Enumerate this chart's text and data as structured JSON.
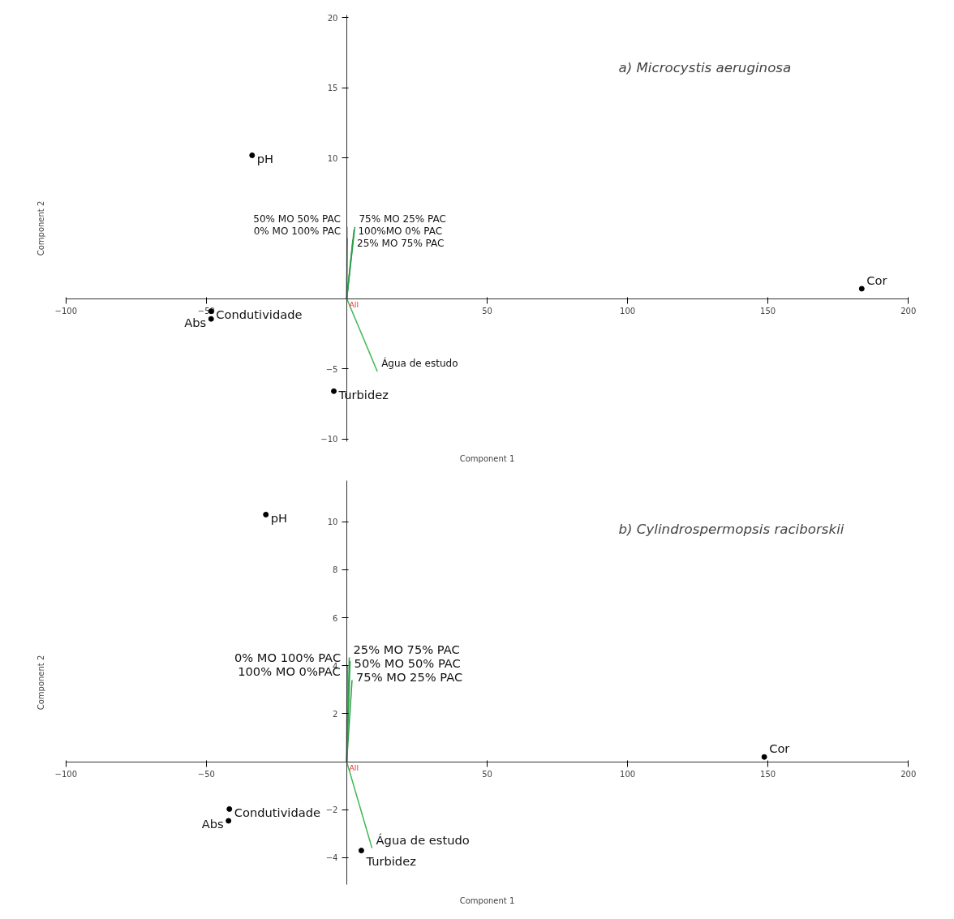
{
  "chart_data": [
    {
      "type": "scatter",
      "title": "a) Microcystis aeruginosa",
      "xlabel": "Component 1",
      "ylabel": "Component 2",
      "xlim": [
        -100,
        200
      ],
      "ylim": [
        -10.2,
        20.2
      ],
      "xticks": [
        -100,
        -50,
        50,
        100,
        150,
        200
      ],
      "yticks": [
        -10,
        -5,
        10,
        15,
        20
      ],
      "grid": false,
      "annotations": [
        {
          "text": "All",
          "x": 0,
          "y": 0
        }
      ],
      "series": [
        {
          "name": "pH",
          "color": "#000000",
          "marker": "circle",
          "x": [
            -33.7
          ],
          "values": [
            10.2
          ]
        },
        {
          "name": "Condutividade",
          "color": "#000000",
          "marker": "circle",
          "x": [
            -48.3
          ],
          "values": [
            -0.9
          ]
        },
        {
          "name": "Abs",
          "color": "#000000",
          "marker": "circle",
          "x": [
            -48.3
          ],
          "values": [
            -1.45
          ]
        },
        {
          "name": "Turbidez",
          "color": "#000000",
          "marker": "circle",
          "x": [
            -4.6
          ],
          "values": [
            -6.6
          ]
        },
        {
          "name": "Cor",
          "color": "#000000",
          "marker": "circle",
          "x": [
            183.4
          ],
          "values": [
            0.7
          ]
        },
        {
          "type": "line",
          "name": "75% MO 25% PAC",
          "color": "#2e9e4a",
          "x": [
            0,
            2.9
          ],
          "values": [
            0,
            5.1
          ]
        },
        {
          "type": "line",
          "name": "100%MO 0% PAC",
          "color": "#2e9e4a",
          "x": [
            0,
            2.6
          ],
          "values": [
            0,
            4.9
          ]
        },
        {
          "type": "line",
          "name": "25% MO 75% PAC",
          "color": "#2e9e4a",
          "x": [
            0,
            2.2
          ],
          "values": [
            0,
            4.2
          ]
        },
        {
          "type": "line",
          "name": "50% MO 50% PAC",
          "color": "#2e9e4a",
          "x": [
            0,
            0.1
          ],
          "values": [
            0,
            5.1
          ]
        },
        {
          "type": "line",
          "name": "0% MO 100% PAC",
          "color": "#2e9e4a",
          "x": [
            0,
            0.2
          ],
          "values": [
            0,
            4.3
          ]
        },
        {
          "type": "line",
          "name": "Água de estudo",
          "color": "#3cb850",
          "x": [
            0,
            10.9
          ],
          "values": [
            0,
            -5.2
          ]
        }
      ]
    },
    {
      "type": "scatter",
      "title": "b) Cylindrospermopsis raciborskii",
      "xlabel": "Component 1",
      "ylabel": "Component 2",
      "xlim": [
        -100,
        200
      ],
      "ylim": [
        -5.1,
        11.7
      ],
      "xticks": [
        -100,
        -50,
        50,
        100,
        150,
        200
      ],
      "yticks": [
        -4,
        -2,
        2,
        4,
        6,
        8,
        10
      ],
      "grid": false,
      "annotations": [
        {
          "text": "All",
          "x": 0,
          "y": 0
        }
      ],
      "series": [
        {
          "name": "pH",
          "color": "#000000",
          "marker": "circle",
          "x": [
            -28.8
          ],
          "values": [
            10.3
          ]
        },
        {
          "name": "Condutividade",
          "color": "#000000",
          "marker": "circle",
          "x": [
            -41.8
          ],
          "values": [
            -1.97
          ]
        },
        {
          "name": "Abs",
          "color": "#000000",
          "marker": "circle",
          "x": [
            -42.1
          ],
          "values": [
            -2.46
          ]
        },
        {
          "name": "Turbidez",
          "color": "#000000",
          "marker": "circle",
          "x": [
            5.2
          ],
          "values": [
            -3.7
          ]
        },
        {
          "name": "Cor",
          "color": "#000000",
          "marker": "circle",
          "x": [
            148.7
          ],
          "values": [
            0.2
          ]
        },
        {
          "type": "line",
          "name": "25% MO 75% PAC",
          "color": "#2e9e4a",
          "x": [
            0,
            0.9
          ],
          "values": [
            0,
            4.35
          ]
        },
        {
          "type": "line",
          "name": "50% MO 50% PAC",
          "color": "#2e9e4a",
          "x": [
            0,
            1.2
          ],
          "values": [
            0,
            4.2
          ]
        },
        {
          "type": "line",
          "name": "75% MO 25% PAC",
          "color": "#2e9e4a",
          "x": [
            0,
            1.9
          ],
          "values": [
            0,
            3.4
          ]
        },
        {
          "type": "line",
          "name": "0% MO 100% PAC",
          "color": "#2e9e4a",
          "x": [
            0,
            0.2
          ],
          "values": [
            0,
            4.0
          ]
        },
        {
          "type": "line",
          "name": "100% MO 0%PAC",
          "color": "#2e9e4a",
          "x": [
            0,
            0.1
          ],
          "values": [
            0,
            3.8
          ]
        },
        {
          "type": "line",
          "name": "Água de estudo",
          "color": "#3cb850",
          "x": [
            0,
            9.0
          ],
          "values": [
            0,
            -3.6
          ]
        }
      ]
    }
  ]
}
